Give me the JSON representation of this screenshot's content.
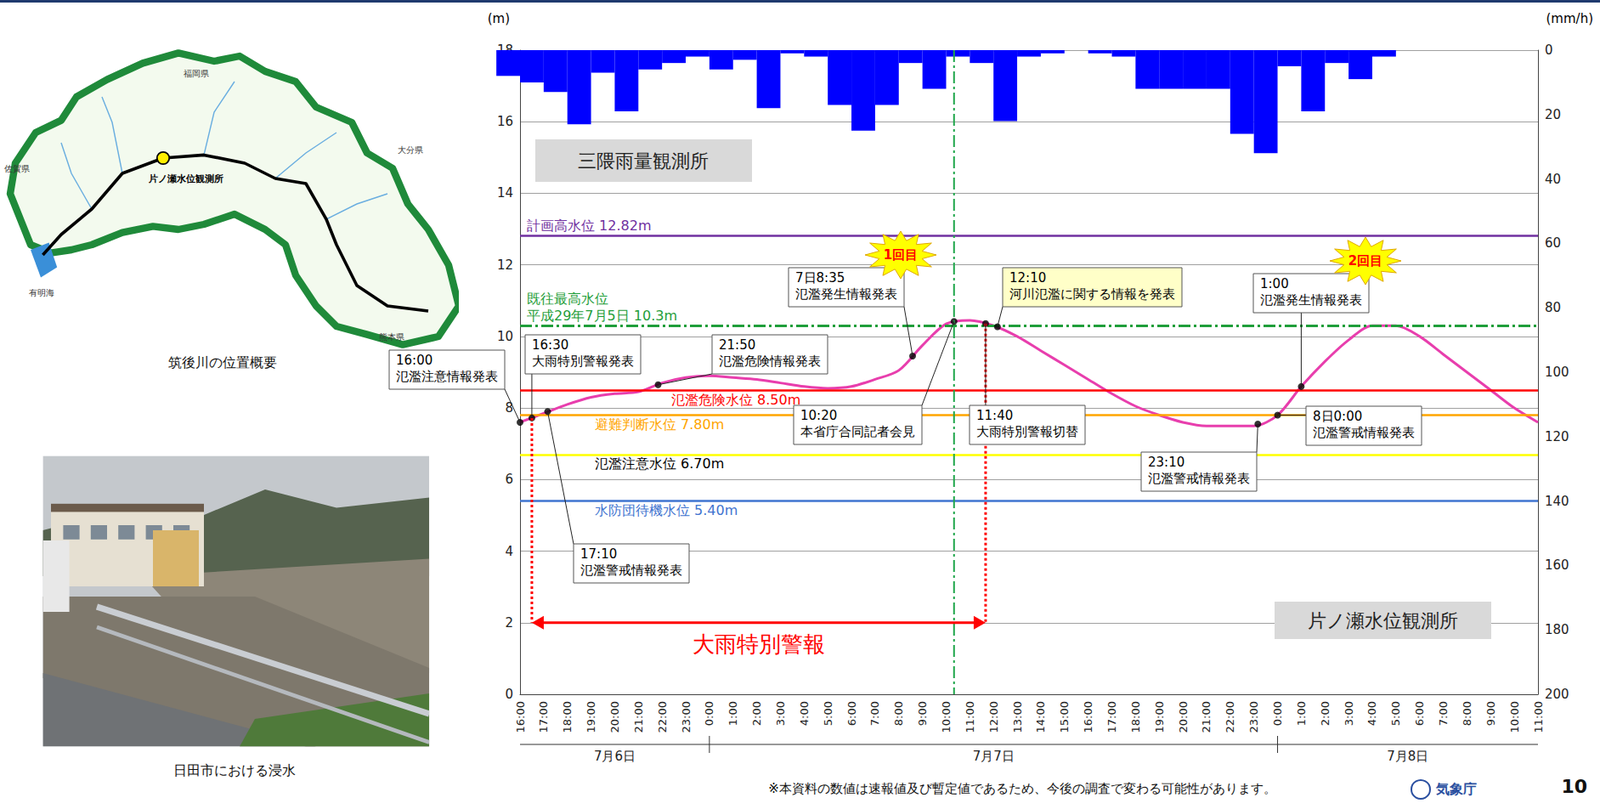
{
  "chart_data": {
    "type": "line",
    "categories": [
      "16:00",
      "17:00",
      "18:00",
      "19:00",
      "20:00",
      "21:00",
      "22:00",
      "23:00",
      "0:00",
      "1:00",
      "2:00",
      "3:00",
      "4:00",
      "5:00",
      "6:00",
      "7:00",
      "8:00",
      "9:00",
      "10:00",
      "11:00",
      "12:00",
      "13:00",
      "14:00",
      "15:00",
      "16:00",
      "17:00",
      "18:00",
      "19:00",
      "20:00",
      "21:00",
      "22:00",
      "23:00",
      "0:00",
      "1:00",
      "2:00",
      "3:00",
      "4:00",
      "5:00",
      "6:00",
      "7:00",
      "8:00",
      "9:00",
      "10:00",
      "11:00"
    ],
    "dates": [
      "7月6日",
      "7月7日",
      "7月8日"
    ],
    "y_label": "(m)",
    "ylim": [
      0,
      18
    ],
    "yticks": [
      0,
      2,
      4,
      6,
      8,
      10,
      12,
      14,
      16,
      18
    ],
    "y2_label": "(mm/h)",
    "y2lim": [
      0,
      200
    ],
    "y2ticks": [
      0,
      20,
      40,
      60,
      80,
      100,
      120,
      140,
      160,
      180,
      200
    ],
    "grid": true,
    "series": [
      {
        "name": "三隈雨量観測所",
        "type": "bar",
        "axis": "y2",
        "color": "#0000ff",
        "values": [
          8,
          10,
          13,
          23,
          7,
          19,
          6,
          4,
          2,
          6,
          3,
          18,
          1,
          2,
          17,
          25,
          17,
          4,
          12,
          2,
          4,
          22,
          2,
          1,
          0,
          1,
          2,
          12,
          12,
          12,
          12,
          26,
          32,
          5,
          19,
          4,
          9,
          2,
          0,
          0,
          0,
          0,
          0,
          0
        ]
      },
      {
        "name": "片ノ瀬水位観測所",
        "type": "line",
        "color": "#e83ead",
        "values": [
          7.6,
          7.85,
          8.1,
          8.3,
          8.4,
          8.45,
          8.7,
          8.85,
          8.9,
          8.85,
          8.8,
          8.7,
          8.6,
          8.55,
          8.6,
          8.8,
          9.05,
          9.75,
          10.35,
          10.45,
          10.3,
          10.0,
          9.6,
          9.2,
          8.8,
          8.4,
          8.05,
          7.8,
          7.6,
          7.5,
          7.5,
          7.5,
          7.8,
          8.6,
          9.3,
          9.9,
          10.3,
          10.3,
          10.0,
          9.5,
          9.0,
          8.5,
          8.0,
          7.6
        ]
      }
    ],
    "thresholds": [
      {
        "label": "計画高水位 12.82m",
        "value": 12.82,
        "color": "#7030a0",
        "line_style": "solid"
      },
      {
        "label": "既往最高水位",
        "label2": "平成29年7月5日 10.3m",
        "value": 10.3,
        "color": "#1f9e3a",
        "line_style": "dashdot"
      },
      {
        "label": "氾濫危険水位 8.50m",
        "value": 8.5,
        "color": "#ff0000",
        "line_style": "solid"
      },
      {
        "label": "避難判断水位 7.80m",
        "value": 7.8,
        "color": "#ffa500",
        "line_style": "solid"
      },
      {
        "label": "氾濫注意水位 6.70m",
        "value": 6.7,
        "color": "#ffff00",
        "line_style": "solid"
      },
      {
        "label": "水防団待機水位 5.40m",
        "value": 5.4,
        "color": "#3f74d0",
        "line_style": "solid"
      }
    ],
    "annotations": [
      {
        "time": "16:00",
        "text": "氾濫注意情報発表",
        "level": 7.6
      },
      {
        "time": "16:30",
        "text": "大雨特別警報発表",
        "level": 7.72
      },
      {
        "time": "17:10",
        "text": "氾濫警戒情報発表",
        "level": 7.9
      },
      {
        "time": "21:50",
        "text": "氾濫危険情報発表",
        "level": 8.65
      },
      {
        "time": "7日8:35",
        "text": "氾濫発生情報発表",
        "level": 9.45,
        "badge": "1回目"
      },
      {
        "time": "10:20",
        "text": "本省庁合同記者会見",
        "level": 10.42,
        "line_style": "dashdot",
        "color": "#1fa64a"
      },
      {
        "time": "11:40",
        "text": "大雨特別警報切替",
        "level": 10.36
      },
      {
        "time": "12:10",
        "text": "河川氾濫に関する情報を発表",
        "level": 10.27,
        "color": "#ffffc8"
      },
      {
        "time": "23:10",
        "text": "氾濫警戒情報発表",
        "level": 7.55
      },
      {
        "time": "8日0:00",
        "text": "氾濫警戒情報発表",
        "level": 7.8
      },
      {
        "time": "1:00",
        "text": "氾濫発生情報発表",
        "level": 8.6,
        "badge": "2回目"
      }
    ],
    "warning": {
      "label": "大雨特別警報",
      "from": "16:30",
      "to": "11:40",
      "level": 2,
      "color": "#ff0000",
      "line_style": "dotted"
    }
  },
  "map": {
    "caption": "筑後川の位置概要",
    "station": "片ノ瀬水位観測所",
    "labels": [
      "福岡県",
      "大分県",
      "熊本県",
      "佐賀県",
      "有明海"
    ]
  },
  "photo": {
    "caption": "日田市における浸水"
  },
  "footnote": "※本資料の数値は速報値及び暫定値であるため、今後の調査で変わる可能性があります。",
  "logo": "気象庁",
  "page": "10"
}
